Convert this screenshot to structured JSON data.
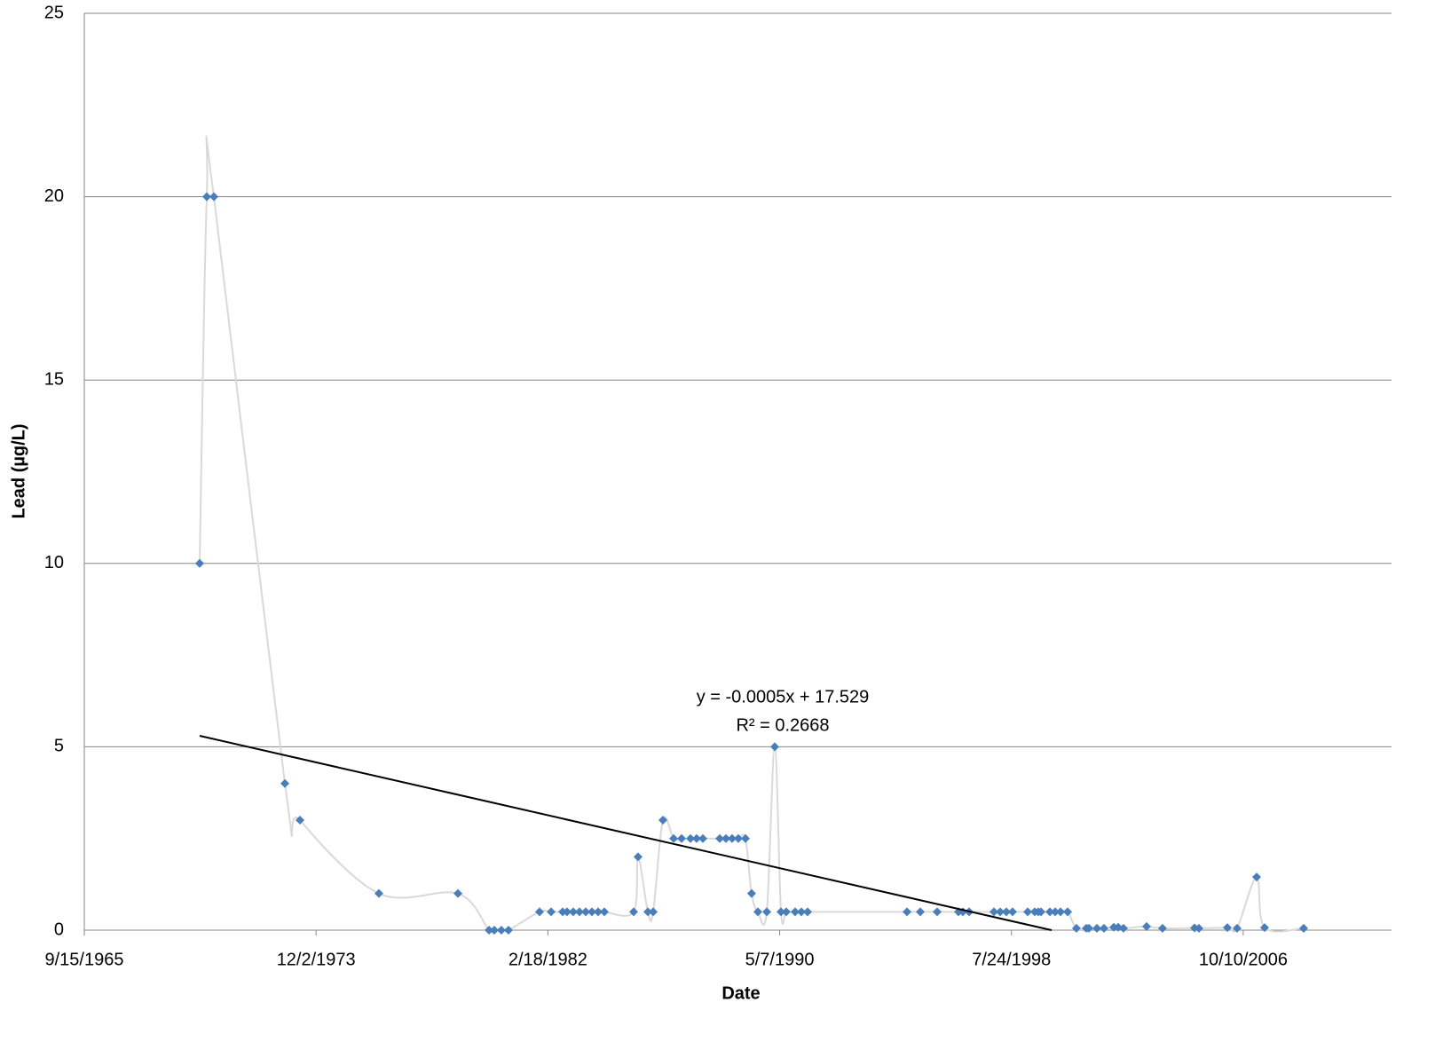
{
  "chart_data": {
    "type": "scatter",
    "x_label": "Date",
    "y_label": "Lead (µg/L)",
    "xlim": [
      24000,
      40919
    ],
    "xticks": [
      {
        "value": 24000,
        "label": "9/15/1965"
      },
      {
        "value": 27000,
        "label": "12/2/1973"
      },
      {
        "value": 30000,
        "label": "2/18/1982"
      },
      {
        "value": 33000,
        "label": "5/7/1990"
      },
      {
        "value": 36000,
        "label": "7/24/1998"
      },
      {
        "value": 39000,
        "label": "10/10/2006"
      }
    ],
    "ylim": [
      0,
      25
    ],
    "yticks": [
      0,
      5,
      10,
      15,
      20,
      25
    ],
    "grid": true,
    "series": [
      {
        "color": "#4a7ebb",
        "line_color": "#d9d9d9",
        "x": [
          25493,
          25585,
          25677,
          26596,
          26791,
          27813,
          28836,
          29238,
          29307,
          29398,
          29490,
          29892,
          30042,
          30191,
          30248,
          30329,
          30409,
          30490,
          30570,
          30650,
          30731,
          31110,
          31167,
          31294,
          31363,
          31489,
          31627,
          31730,
          31845,
          31925,
          32006,
          32224,
          32304,
          32385,
          32465,
          32557,
          32637,
          32718,
          32833,
          32936,
          33017,
          33085,
          33200,
          33281,
          33361,
          34648,
          34820,
          35038,
          35314,
          35371,
          35452,
          35773,
          35854,
          35934,
          36014,
          36210,
          36301,
          36347,
          36382,
          36497,
          36566,
          36635,
          36727,
          36841,
          36968,
          37002,
          37106,
          37197,
          37324,
          37381,
          37450,
          37749,
          37955,
          38369,
          38426,
          38794,
          38920,
          39173,
          39276,
          39782
        ],
        "values": [
          10,
          20,
          20,
          4,
          3,
          1,
          1,
          0,
          0,
          0,
          0,
          0.5,
          0.5,
          0.5,
          0.5,
          0.5,
          0.5,
          0.5,
          0.5,
          0.5,
          0.5,
          0.5,
          2,
          0.5,
          0.5,
          3,
          2.5,
          2.5,
          2.5,
          2.5,
          2.5,
          2.5,
          2.5,
          2.5,
          2.5,
          2.5,
          1,
          0.5,
          0.5,
          5,
          0.5,
          0.5,
          0.5,
          0.5,
          0.5,
          0.5,
          0.5,
          0.5,
          0.5,
          0.5,
          0.5,
          0.5,
          0.5,
          0.5,
          0.5,
          0.5,
          0.5,
          0.5,
          0.5,
          0.5,
          0.5,
          0.5,
          0.5,
          0.05,
          0.05,
          0.05,
          0.05,
          0.05,
          0.08,
          0.08,
          0.05,
          0.1,
          0.05,
          0.06,
          0.05,
          0.07,
          0.05,
          1.45,
          0.07,
          0.05
        ]
      }
    ],
    "trendline": {
      "color": "#000000",
      "x": [
        25493,
        36519
      ],
      "y": [
        5.3,
        0
      ],
      "equation": "y = -0.0005x + 17.529",
      "r_squared": "R² = 0.2668"
    }
  }
}
